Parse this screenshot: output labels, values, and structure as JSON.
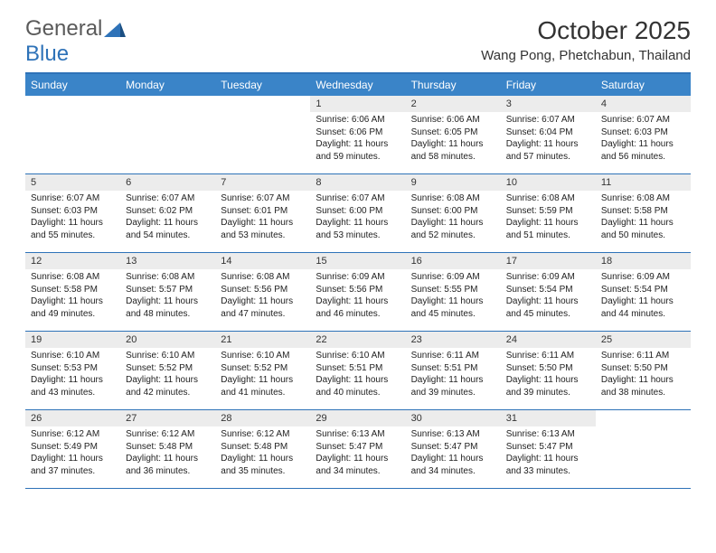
{
  "logo": {
    "word1": "General",
    "word2": "Blue"
  },
  "title": "October 2025",
  "subtitle": "Wang Pong, Phetchabun, Thailand",
  "colors": {
    "header_bg": "#3a84c8",
    "brand_blue": "#2e72b8",
    "date_bg": "#ececec",
    "text": "#222222"
  },
  "day_names": [
    "Sunday",
    "Monday",
    "Tuesday",
    "Wednesday",
    "Thursday",
    "Friday",
    "Saturday"
  ],
  "weeks": [
    [
      {
        "empty": true
      },
      {
        "empty": true
      },
      {
        "empty": true
      },
      {
        "date": "1",
        "sunrise": "Sunrise: 6:06 AM",
        "sunset": "Sunset: 6:06 PM",
        "daylight": "Daylight: 11 hours and 59 minutes."
      },
      {
        "date": "2",
        "sunrise": "Sunrise: 6:06 AM",
        "sunset": "Sunset: 6:05 PM",
        "daylight": "Daylight: 11 hours and 58 minutes."
      },
      {
        "date": "3",
        "sunrise": "Sunrise: 6:07 AM",
        "sunset": "Sunset: 6:04 PM",
        "daylight": "Daylight: 11 hours and 57 minutes."
      },
      {
        "date": "4",
        "sunrise": "Sunrise: 6:07 AM",
        "sunset": "Sunset: 6:03 PM",
        "daylight": "Daylight: 11 hours and 56 minutes."
      }
    ],
    [
      {
        "date": "5",
        "sunrise": "Sunrise: 6:07 AM",
        "sunset": "Sunset: 6:03 PM",
        "daylight": "Daylight: 11 hours and 55 minutes."
      },
      {
        "date": "6",
        "sunrise": "Sunrise: 6:07 AM",
        "sunset": "Sunset: 6:02 PM",
        "daylight": "Daylight: 11 hours and 54 minutes."
      },
      {
        "date": "7",
        "sunrise": "Sunrise: 6:07 AM",
        "sunset": "Sunset: 6:01 PM",
        "daylight": "Daylight: 11 hours and 53 minutes."
      },
      {
        "date": "8",
        "sunrise": "Sunrise: 6:07 AM",
        "sunset": "Sunset: 6:00 PM",
        "daylight": "Daylight: 11 hours and 53 minutes."
      },
      {
        "date": "9",
        "sunrise": "Sunrise: 6:08 AM",
        "sunset": "Sunset: 6:00 PM",
        "daylight": "Daylight: 11 hours and 52 minutes."
      },
      {
        "date": "10",
        "sunrise": "Sunrise: 6:08 AM",
        "sunset": "Sunset: 5:59 PM",
        "daylight": "Daylight: 11 hours and 51 minutes."
      },
      {
        "date": "11",
        "sunrise": "Sunrise: 6:08 AM",
        "sunset": "Sunset: 5:58 PM",
        "daylight": "Daylight: 11 hours and 50 minutes."
      }
    ],
    [
      {
        "date": "12",
        "sunrise": "Sunrise: 6:08 AM",
        "sunset": "Sunset: 5:58 PM",
        "daylight": "Daylight: 11 hours and 49 minutes."
      },
      {
        "date": "13",
        "sunrise": "Sunrise: 6:08 AM",
        "sunset": "Sunset: 5:57 PM",
        "daylight": "Daylight: 11 hours and 48 minutes."
      },
      {
        "date": "14",
        "sunrise": "Sunrise: 6:08 AM",
        "sunset": "Sunset: 5:56 PM",
        "daylight": "Daylight: 11 hours and 47 minutes."
      },
      {
        "date": "15",
        "sunrise": "Sunrise: 6:09 AM",
        "sunset": "Sunset: 5:56 PM",
        "daylight": "Daylight: 11 hours and 46 minutes."
      },
      {
        "date": "16",
        "sunrise": "Sunrise: 6:09 AM",
        "sunset": "Sunset: 5:55 PM",
        "daylight": "Daylight: 11 hours and 45 minutes."
      },
      {
        "date": "17",
        "sunrise": "Sunrise: 6:09 AM",
        "sunset": "Sunset: 5:54 PM",
        "daylight": "Daylight: 11 hours and 45 minutes."
      },
      {
        "date": "18",
        "sunrise": "Sunrise: 6:09 AM",
        "sunset": "Sunset: 5:54 PM",
        "daylight": "Daylight: 11 hours and 44 minutes."
      }
    ],
    [
      {
        "date": "19",
        "sunrise": "Sunrise: 6:10 AM",
        "sunset": "Sunset: 5:53 PM",
        "daylight": "Daylight: 11 hours and 43 minutes."
      },
      {
        "date": "20",
        "sunrise": "Sunrise: 6:10 AM",
        "sunset": "Sunset: 5:52 PM",
        "daylight": "Daylight: 11 hours and 42 minutes."
      },
      {
        "date": "21",
        "sunrise": "Sunrise: 6:10 AM",
        "sunset": "Sunset: 5:52 PM",
        "daylight": "Daylight: 11 hours and 41 minutes."
      },
      {
        "date": "22",
        "sunrise": "Sunrise: 6:10 AM",
        "sunset": "Sunset: 5:51 PM",
        "daylight": "Daylight: 11 hours and 40 minutes."
      },
      {
        "date": "23",
        "sunrise": "Sunrise: 6:11 AM",
        "sunset": "Sunset: 5:51 PM",
        "daylight": "Daylight: 11 hours and 39 minutes."
      },
      {
        "date": "24",
        "sunrise": "Sunrise: 6:11 AM",
        "sunset": "Sunset: 5:50 PM",
        "daylight": "Daylight: 11 hours and 39 minutes."
      },
      {
        "date": "25",
        "sunrise": "Sunrise: 6:11 AM",
        "sunset": "Sunset: 5:50 PM",
        "daylight": "Daylight: 11 hours and 38 minutes."
      }
    ],
    [
      {
        "date": "26",
        "sunrise": "Sunrise: 6:12 AM",
        "sunset": "Sunset: 5:49 PM",
        "daylight": "Daylight: 11 hours and 37 minutes."
      },
      {
        "date": "27",
        "sunrise": "Sunrise: 6:12 AM",
        "sunset": "Sunset: 5:48 PM",
        "daylight": "Daylight: 11 hours and 36 minutes."
      },
      {
        "date": "28",
        "sunrise": "Sunrise: 6:12 AM",
        "sunset": "Sunset: 5:48 PM",
        "daylight": "Daylight: 11 hours and 35 minutes."
      },
      {
        "date": "29",
        "sunrise": "Sunrise: 6:13 AM",
        "sunset": "Sunset: 5:47 PM",
        "daylight": "Daylight: 11 hours and 34 minutes."
      },
      {
        "date": "30",
        "sunrise": "Sunrise: 6:13 AM",
        "sunset": "Sunset: 5:47 PM",
        "daylight": "Daylight: 11 hours and 34 minutes."
      },
      {
        "date": "31",
        "sunrise": "Sunrise: 6:13 AM",
        "sunset": "Sunset: 5:47 PM",
        "daylight": "Daylight: 11 hours and 33 minutes."
      },
      {
        "empty": true
      }
    ]
  ]
}
